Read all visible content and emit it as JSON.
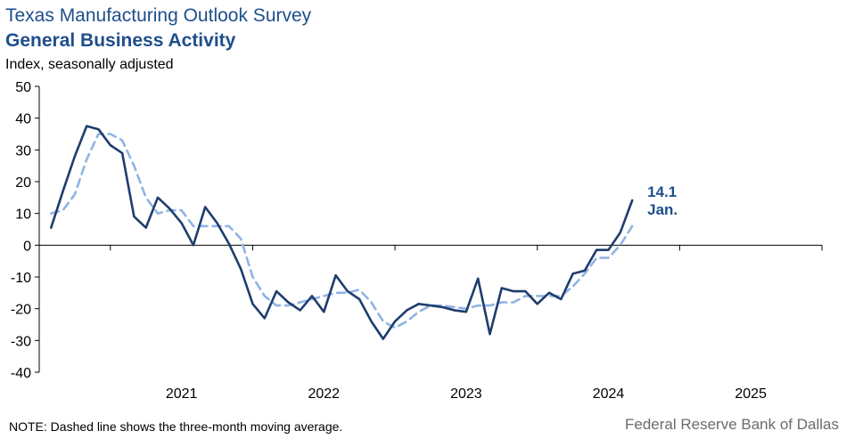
{
  "header": {
    "title": "Texas Manufacturing Outlook Survey",
    "subtitle": "General Business Activity",
    "ylabel": "Index, seasonally adjusted"
  },
  "footer": {
    "note": "NOTE: Dashed line shows the three-month  moving average.",
    "source": "Federal Reserve Bank of Dallas"
  },
  "chart_data": {
    "type": "line",
    "title": "General Business Activity",
    "ylabel": "Index, seasonally adjusted",
    "ylim": [
      -40,
      50
    ],
    "yticks": [
      50,
      40,
      30,
      20,
      10,
      0,
      -10,
      -20,
      -30,
      -40
    ],
    "xticks": [
      "2021",
      "2022",
      "2023",
      "2024",
      "2025"
    ],
    "x_start": "2020-08",
    "x_range": [
      "2020-07",
      "2025-12"
    ],
    "grid": false,
    "annotation": {
      "value_label": "14.1",
      "date_label": "Jan."
    },
    "colors": {
      "series": "#1f3d6e",
      "moving_average": "#8fb4e3",
      "text": "#1f4e8c",
      "source": "#6b6b6b"
    },
    "series": [
      {
        "style": "solid",
        "values": [
          5.5,
          17,
          28,
          37.5,
          36.5,
          31.5,
          29,
          9,
          5.5,
          15,
          11.5,
          7,
          0,
          12,
          7,
          0.5,
          -7.5,
          -18.5,
          -23,
          -14.5,
          -18,
          -20.5,
          -16,
          -21,
          -9.5,
          -14.5,
          -17,
          -24,
          -29.5,
          -24,
          -20.5,
          -18.5,
          -19,
          -19.5,
          -20.5,
          -21,
          -10.5,
          -28,
          -13.5,
          -14.5,
          -14.5,
          -18.5,
          -15,
          -17,
          -9,
          -8,
          -1.5,
          -1.5,
          4,
          14.1
        ]
      },
      {
        "style": "dashed",
        "values": [
          10,
          11,
          16,
          27,
          35,
          35,
          33,
          25,
          15,
          10,
          11,
          11,
          6,
          6,
          6,
          6,
          2,
          -10,
          -16,
          -19,
          -19,
          -18,
          -17,
          -16,
          -15,
          -15,
          -14,
          -18,
          -24,
          -26,
          -24,
          -21,
          -19,
          -19,
          -19.5,
          -20,
          -19,
          -19,
          -18,
          -18,
          -16,
          -16,
          -16,
          -16,
          -13,
          -9,
          -4,
          -4,
          0,
          6
        ]
      }
    ]
  }
}
